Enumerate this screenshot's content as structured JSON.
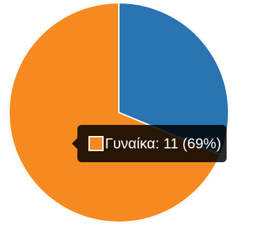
{
  "chart_data": {
    "type": "pie",
    "slices": [
      {
        "value": 5,
        "color": "#2a74b1"
      },
      {
        "value": 11,
        "color": "#f68a20"
      }
    ]
  },
  "tooltip": {
    "label": "Γυναίκα",
    "value": 11,
    "percent": "69%",
    "text": "Γυναίκα: 11 (69%)",
    "swatch_color": "#f68a20"
  }
}
